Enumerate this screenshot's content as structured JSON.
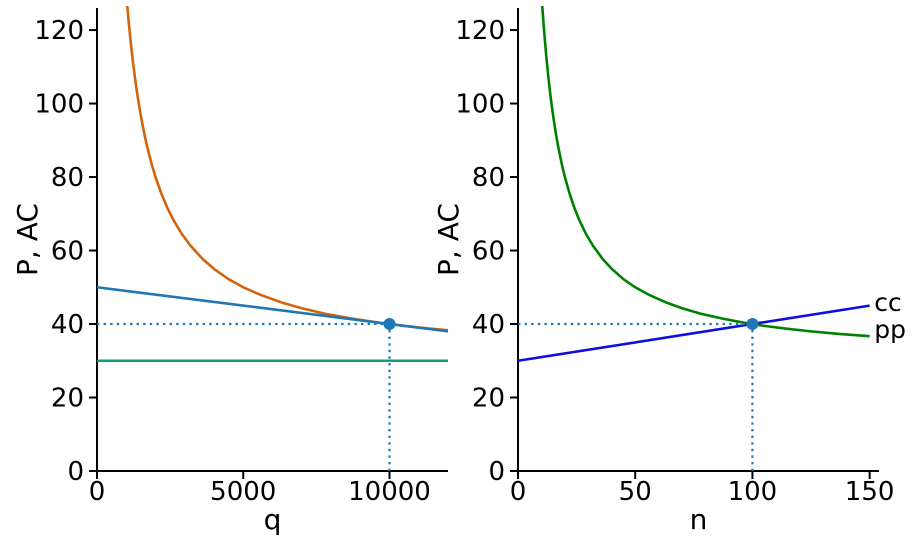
{
  "figure": {
    "background": "#ffffff",
    "text_color": "#000000",
    "accent_blue": "#1f77b4"
  },
  "chart_data": [
    {
      "id": "q-panel",
      "type": "line",
      "title": "",
      "xlabel": "q",
      "ylabel": "P, AC",
      "xlim": [
        0,
        12000
      ],
      "ylim": [
        0,
        126
      ],
      "xticks": [
        0,
        5000,
        10000
      ],
      "yticks": [
        0,
        20,
        40,
        60,
        80,
        100,
        120
      ],
      "grid": false,
      "legend": "none",
      "series": [
        {
          "name": "average-cost-curve",
          "color": "#d2640d",
          "width": 2.6,
          "points": [
            [
              1025,
              127.6
            ],
            [
              1045,
              125.7
            ],
            [
              1060,
              124.3
            ],
            [
              1080,
              122.6
            ],
            [
              1100,
              120.9
            ],
            [
              1120,
              119.3
            ],
            [
              1145,
              117.4
            ],
            [
              1170,
              115.5
            ],
            [
              1200,
              113.3
            ],
            [
              1230,
              111.3
            ],
            [
              1260,
              109.4
            ],
            [
              1300,
              106.9
            ],
            [
              1340,
              104.6
            ],
            [
              1390,
              101.9
            ],
            [
              1440,
              99.4
            ],
            [
              1500,
              96.7
            ],
            [
              1560,
              94.1
            ],
            [
              1630,
              91.3
            ],
            [
              1700,
              88.8
            ],
            [
              1790,
              85.9
            ],
            [
              1890,
              82.9
            ],
            [
              2000,
              80
            ],
            [
              2200,
              75.5
            ],
            [
              2400,
              71.7
            ],
            [
              2600,
              68.5
            ],
            [
              2900,
              64.5
            ],
            [
              3200,
              61.3
            ],
            [
              3600,
              57.8
            ],
            [
              4000,
              55
            ],
            [
              4500,
              52.2
            ],
            [
              5000,
              50
            ],
            [
              5600,
              47.9
            ],
            [
              6300,
              45.9
            ],
            [
              7000,
              44.3
            ],
            [
              7800,
              42.8
            ],
            [
              8700,
              41.5
            ],
            [
              9600,
              40.4
            ],
            [
              10000,
              40
            ],
            [
              10500,
              39.5
            ],
            [
              11200,
              38.9
            ],
            [
              12000,
              38.3
            ]
          ]
        },
        {
          "name": "demand-line",
          "color": "#1f77b4",
          "width": 2.6,
          "points": [
            [
              0,
              50
            ],
            [
              12000,
              38
            ]
          ]
        },
        {
          "name": "marginal-cost-line",
          "color": "#129e78",
          "width": 2.6,
          "points": [
            [
              0,
              30
            ],
            [
              12000,
              30
            ]
          ]
        }
      ],
      "guides": [
        {
          "name": "price-guide-horizontal",
          "color": "#1f77b4",
          "points": [
            [
              0,
              40
            ],
            [
              10000,
              40
            ]
          ]
        },
        {
          "name": "quantity-guide-vertical",
          "color": "#1f77b4",
          "points": [
            [
              10000,
              0
            ],
            [
              10000,
              40
            ]
          ]
        }
      ],
      "markers": [
        {
          "name": "tangency-point",
          "x": 10000,
          "y": 40,
          "color": "#1f77b4"
        }
      ],
      "annotations": []
    },
    {
      "id": "n-panel",
      "type": "line",
      "title": "",
      "xlabel": "n",
      "ylabel": "P, AC",
      "xlim": [
        0,
        154
      ],
      "ylim": [
        0,
        126
      ],
      "xticks": [
        0,
        50,
        100,
        150
      ],
      "yticks": [
        0,
        20,
        40,
        60,
        80,
        100,
        120
      ],
      "grid": false,
      "legend": "none",
      "series": [
        {
          "name": "pp-curve",
          "color": "#008000",
          "width": 2.6,
          "points": [
            [
              10.25,
              127.6
            ],
            [
              10.45,
              125.7
            ],
            [
              10.6,
              124.3
            ],
            [
              10.8,
              122.6
            ],
            [
              11,
              120.9
            ],
            [
              11.2,
              119.3
            ],
            [
              11.45,
              117.4
            ],
            [
              11.7,
              115.5
            ],
            [
              12,
              113.3
            ],
            [
              12.3,
              111.3
            ],
            [
              12.6,
              109.4
            ],
            [
              13,
              106.9
            ],
            [
              13.4,
              104.6
            ],
            [
              13.9,
              101.9
            ],
            [
              14.4,
              99.4
            ],
            [
              15,
              96.7
            ],
            [
              15.6,
              94.1
            ],
            [
              16.3,
              91.3
            ],
            [
              17,
              88.8
            ],
            [
              17.9,
              85.9
            ],
            [
              18.9,
              82.9
            ],
            [
              20,
              80
            ],
            [
              22,
              75.5
            ],
            [
              24,
              71.7
            ],
            [
              26,
              68.5
            ],
            [
              29,
              64.5
            ],
            [
              32,
              61.3
            ],
            [
              36,
              57.8
            ],
            [
              40,
              55
            ],
            [
              45,
              52.2
            ],
            [
              50,
              50
            ],
            [
              56,
              47.9
            ],
            [
              63,
              45.9
            ],
            [
              70,
              44.3
            ],
            [
              78,
              42.8
            ],
            [
              87,
              41.5
            ],
            [
              96,
              40.4
            ],
            [
              100,
              40
            ],
            [
              105,
              39.5
            ],
            [
              115,
              38.7
            ],
            [
              125,
              38
            ],
            [
              137,
              37.3
            ],
            [
              150,
              36.7
            ]
          ]
        },
        {
          "name": "cc-line",
          "color": "#0d0de0",
          "width": 2.6,
          "points": [
            [
              0,
              30
            ],
            [
              150,
              45
            ]
          ]
        }
      ],
      "guides": [
        {
          "name": "price-guide-horizontal",
          "color": "#1f77b4",
          "points": [
            [
              0,
              40
            ],
            [
              100,
              40
            ]
          ]
        },
        {
          "name": "n-guide-vertical",
          "color": "#1f77b4",
          "points": [
            [
              100,
              0
            ],
            [
              100,
              40
            ]
          ]
        }
      ],
      "markers": [
        {
          "name": "equilibrium-point",
          "x": 100,
          "y": 40,
          "color": "#1f77b4"
        }
      ],
      "annotations": [
        {
          "name": "cc-label",
          "text": "cc",
          "x": 152,
          "y": 46
        },
        {
          "name": "pp-label",
          "text": "pp",
          "x": 152,
          "y": 38.6
        }
      ]
    }
  ]
}
